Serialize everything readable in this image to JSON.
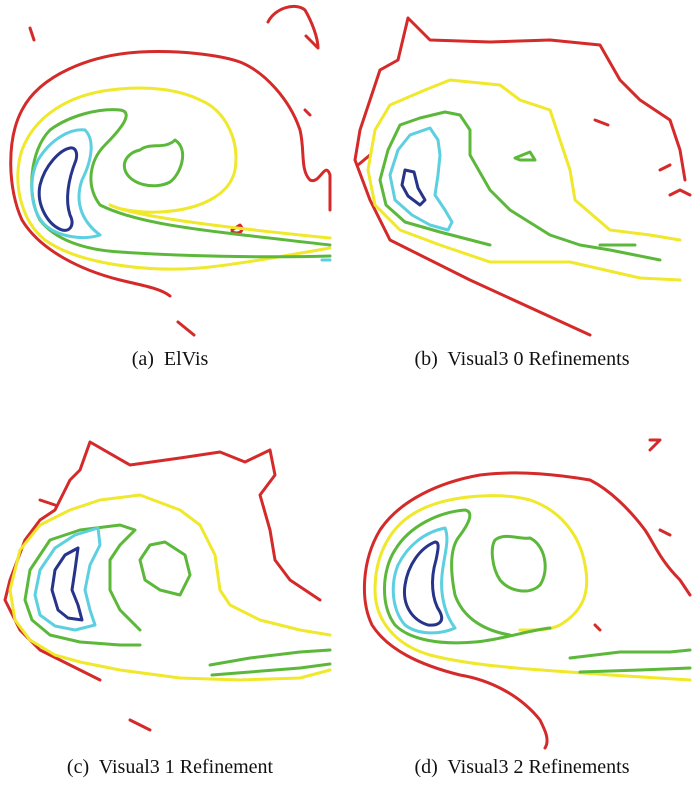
{
  "colors": {
    "red": "#d42a2a",
    "yellow": "#f0e82a",
    "green": "#5cb83a",
    "cyan": "#5ccfe0",
    "navy": "#26348a"
  },
  "panels": [
    {
      "letter": "(a)",
      "title": "ElVis"
    },
    {
      "letter": "(b)",
      "title": "Visual3 0 Refinements"
    },
    {
      "letter": "(c)",
      "title": "Visual3 1 Refinement"
    },
    {
      "letter": "(d)",
      "title": "Visual3 2 Refinements"
    }
  ]
}
